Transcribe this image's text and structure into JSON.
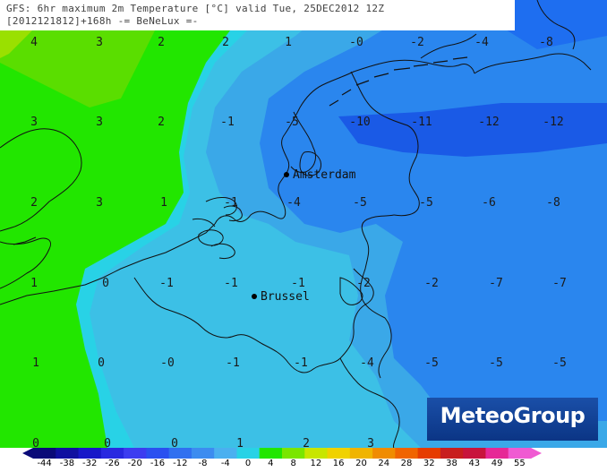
{
  "header": {
    "line1": "GFS: 6hr maximum 2m Temperature [°C] valid Tue, 25DEC2012 12Z",
    "line2": "[2012121812]+168h -= BeNeLux =-"
  },
  "cities": [
    {
      "name": "Amsterdam"
    },
    {
      "name": "Brussel"
    }
  ],
  "grid_values": [
    "4",
    "3",
    "2",
    "2",
    "1",
    "-0",
    "-2",
    "-4",
    "-8",
    "3",
    "3",
    "2",
    "-1",
    "-5",
    "-10",
    "-11",
    "-12",
    "-12",
    "2",
    "3",
    "1",
    "-1",
    "-4",
    "-5",
    "-5",
    "-6",
    "-8",
    "1",
    "0",
    "-1",
    "-1",
    "-1",
    "-2",
    "-2",
    "-7",
    "-7",
    "1",
    "0",
    "-0",
    "-1",
    "-1",
    "-4",
    "-5",
    "-5",
    "-5",
    "0",
    "0",
    "0",
    "1",
    "2",
    "3"
  ],
  "logo": "MeteoGroup",
  "colorbar": {
    "labels": [
      "-44",
      "-38",
      "-32",
      "-26",
      "-20",
      "-16",
      "-12",
      "-8",
      "-4",
      "0",
      "4",
      "8",
      "12",
      "16",
      "20",
      "24",
      "28",
      "32",
      "38",
      "43",
      "49",
      "55"
    ],
    "colors": [
      "#0a0a78",
      "#1010a0",
      "#1818c8",
      "#2828e0",
      "#3c3cf0",
      "#2a50f0",
      "#3070f0",
      "#3c8cf0",
      "#4ab0f0",
      "#28d2e6",
      "#22e600",
      "#7ae600",
      "#c8e600",
      "#f0d200",
      "#f0b400",
      "#f08c00",
      "#f06400",
      "#e63c00",
      "#c81e1e",
      "#c8143c",
      "#e62896",
      "#f05ad2"
    ]
  }
}
